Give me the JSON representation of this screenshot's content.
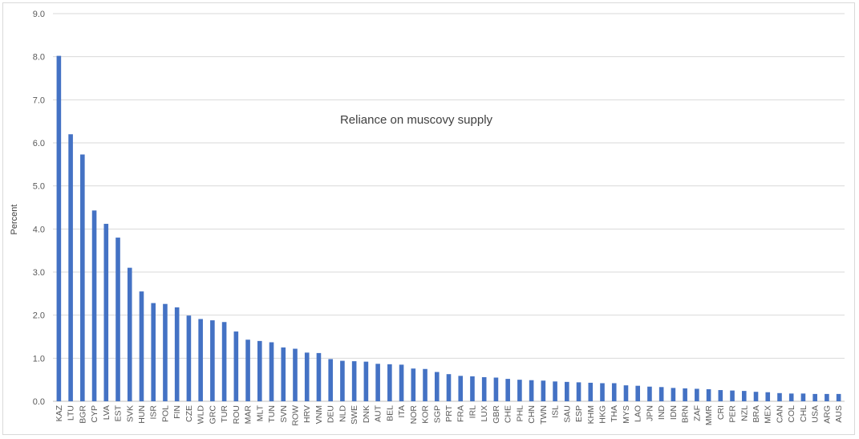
{
  "chart_data": {
    "type": "bar",
    "title": "Reliance on muscovy supply",
    "xlabel": "",
    "ylabel": "Percent",
    "ylim": [
      0,
      9
    ],
    "yticks": [
      "0.0",
      "1.0",
      "2.0",
      "3.0",
      "4.0",
      "5.0",
      "6.0",
      "7.0",
      "8.0",
      "9.0"
    ],
    "grid": true,
    "legend": "none",
    "bar_color": "#4472C4",
    "categories": [
      "KAZ",
      "LTU",
      "BGR",
      "CYP",
      "LVA",
      "EST",
      "SVK",
      "HUN",
      "ISR",
      "POL",
      "FIN",
      "CZE",
      "WLD",
      "GRC",
      "TUR",
      "ROU",
      "MAR",
      "MLT",
      "TUN",
      "SVN",
      "ROW",
      "HRV",
      "VNM",
      "DEU",
      "NLD",
      "SWE",
      "DNK",
      "AUT",
      "BEL",
      "ITA",
      "NOR",
      "KOR",
      "SGP",
      "PRT",
      "FRA",
      "IRL",
      "LUX",
      "GBR",
      "CHE",
      "PHL",
      "CHN",
      "TWN",
      "ISL",
      "SAU",
      "ESP",
      "KHM",
      "HKG",
      "THA",
      "MYS",
      "LAO",
      "JPN",
      "IND",
      "IDN",
      "BRN",
      "ZAF",
      "MMR",
      "CRI",
      "PER",
      "NZL",
      "BRA",
      "MEX",
      "CAN",
      "COL",
      "CHL",
      "USA",
      "ARG",
      "AUS"
    ],
    "values": [
      8.02,
      6.2,
      5.73,
      4.43,
      4.12,
      3.8,
      3.1,
      2.55,
      2.28,
      2.26,
      2.18,
      1.99,
      1.91,
      1.88,
      1.84,
      1.62,
      1.43,
      1.4,
      1.37,
      1.25,
      1.22,
      1.13,
      1.12,
      0.98,
      0.94,
      0.93,
      0.92,
      0.87,
      0.86,
      0.85,
      0.76,
      0.75,
      0.68,
      0.63,
      0.59,
      0.58,
      0.56,
      0.55,
      0.52,
      0.5,
      0.49,
      0.48,
      0.46,
      0.45,
      0.44,
      0.43,
      0.42,
      0.42,
      0.37,
      0.36,
      0.34,
      0.33,
      0.31,
      0.3,
      0.29,
      0.28,
      0.26,
      0.25,
      0.24,
      0.22,
      0.21,
      0.19,
      0.18,
      0.18,
      0.17,
      0.17,
      0.17
    ]
  }
}
